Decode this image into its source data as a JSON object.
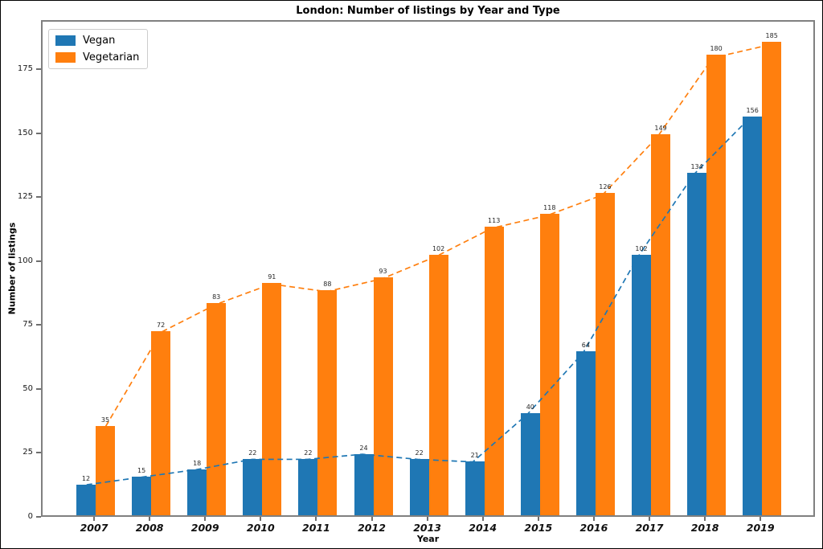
{
  "title": "London: Number of listings by Year and Type",
  "chart_data": {
    "type": "bar",
    "categories": [
      "2007",
      "2008",
      "2009",
      "2010",
      "2011",
      "2012",
      "2013",
      "2014",
      "2015",
      "2016",
      "2017",
      "2018",
      "2019"
    ],
    "series": [
      {
        "name": "Vegan",
        "color": "#1f77b4",
        "values": [
          12,
          15,
          18,
          22,
          22,
          24,
          22,
          21,
          40,
          64,
          102,
          134,
          156
        ]
      },
      {
        "name": "Vegetarian",
        "color": "#ff7f0e",
        "values": [
          35,
          72,
          83,
          91,
          88,
          93,
          102,
          113,
          118,
          126,
          149,
          180,
          185
        ]
      }
    ],
    "title": "London: Number of listings by Year and Type",
    "xlabel": "Year",
    "ylabel": "Number of listings",
    "yticks": [
      0,
      25,
      50,
      75,
      100,
      125,
      150,
      175
    ],
    "ylim": [
      0,
      194.25
    ],
    "grid": false,
    "bar_value_labels": true,
    "trend_line_style": "dashed",
    "legend_position": "upper-left"
  },
  "legend": {
    "items": [
      {
        "label": "Vegan",
        "color": "#1f77b4"
      },
      {
        "label": "Vegetarian",
        "color": "#ff7f0e"
      }
    ]
  }
}
